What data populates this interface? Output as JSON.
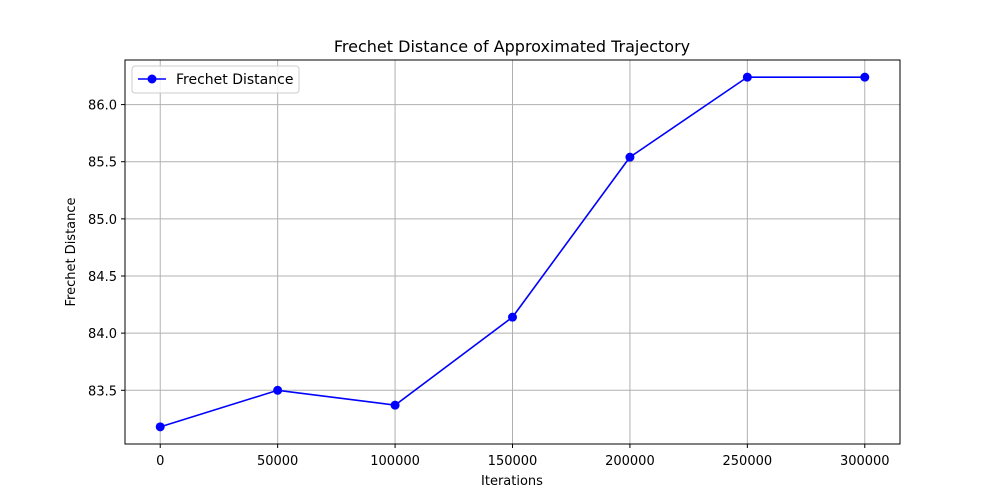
{
  "chart_data": {
    "type": "line",
    "title": "Frechet Distance of Approximated Trajectory",
    "xlabel": "Iterations",
    "ylabel": "Frechet Distance",
    "xlim": [
      -15000,
      315000
    ],
    "ylim": [
      83.03,
      86.39
    ],
    "x_ticks": [
      0,
      50000,
      100000,
      150000,
      200000,
      250000,
      300000
    ],
    "y_ticks": [
      83.5,
      84.0,
      84.5,
      85.0,
      85.5,
      86.0
    ],
    "x_tick_labels": [
      "0",
      "50000",
      "100000",
      "150000",
      "200000",
      "250000",
      "300000"
    ],
    "y_tick_labels": [
      "83.5",
      "84.0",
      "84.5",
      "85.0",
      "85.5",
      "86.0"
    ],
    "grid": true,
    "legend_position": "top-left",
    "series": [
      {
        "name": "Frechet Distance",
        "color": "#0000ff",
        "marker": "circle",
        "x": [
          0,
          50000,
          100000,
          150000,
          200000,
          250000,
          300000
        ],
        "y": [
          83.18,
          83.5,
          83.37,
          84.14,
          85.54,
          86.24,
          86.24
        ]
      }
    ]
  }
}
